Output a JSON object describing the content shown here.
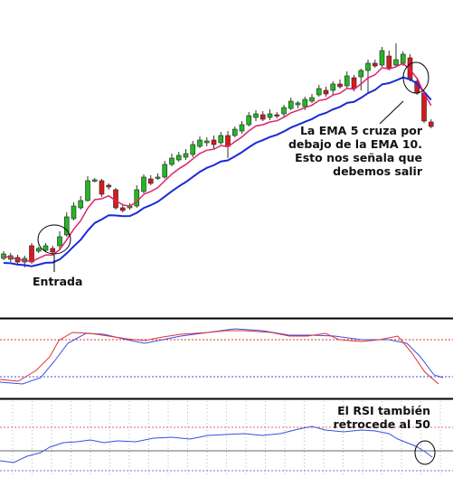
{
  "chart_data": [
    {
      "type": "candlestick",
      "panel": "price",
      "up_color": "#22b822",
      "down_color": "#d81a1a",
      "candles": [
        {
          "o": [
            286,
            281
          ],
          "l": [
            288,
            278
          ]
        },
        {
          "o": [
            287,
            283
          ],
          "l": [
            290,
            280
          ]
        },
        {
          "o": [
            285,
            290
          ],
          "l": [
            293,
            282
          ]
        },
        {
          "o": [
            290,
            286
          ],
          "l": [
            296,
            283
          ]
        },
        {
          "o": [
            272,
            290
          ],
          "l": [
            292,
            269
          ]
        },
        {
          "o": [
            278,
            275
          ],
          "l": [
            280,
            273
          ]
        },
        {
          "o": [
            277,
            272
          ],
          "l": [
            279,
            269
          ]
        },
        {
          "o": [
            275,
            279
          ],
          "l": [
            283,
            272
          ]
        },
        {
          "o": [
            272,
            262
          ],
          "l": [
            276,
            256
          ]
        },
        {
          "o": [
            260,
            240
          ],
          "l": [
            262,
            235
          ]
        },
        {
          "o": [
            242,
            228
          ],
          "l": [
            244,
            224
          ]
        },
        {
          "o": [
            230,
            222
          ],
          "l": [
            232,
            217
          ]
        },
        {
          "o": [
            222,
            200
          ],
          "l": [
            223,
            195
          ]
        },
        {
          "o": [
            200,
            199
          ],
          "l": [
            202,
            197
          ]
        },
        {
          "o": [
            200,
            215
          ],
          "l": [
            218,
            198
          ]
        },
        {
          "o": [
            205,
            207
          ],
          "l": [
            210,
            203
          ]
        },
        {
          "o": [
            210,
            230
          ],
          "l": [
            232,
            208
          ]
        },
        {
          "o": [
            230,
            233
          ],
          "l": [
            235,
            226
          ]
        },
        {
          "o": [
            230,
            228
          ],
          "l": [
            232,
            225
          ]
        },
        {
          "o": [
            228,
            210
          ],
          "l": [
            230,
            205
          ]
        },
        {
          "o": [
            212,
            196
          ],
          "l": [
            214,
            193
          ]
        },
        {
          "o": [
            198,
            203
          ],
          "l": [
            205,
            194
          ]
        },
        {
          "o": [
            197,
            196
          ],
          "l": [
            199,
            192
          ]
        },
        {
          "o": [
            196,
            182
          ],
          "l": [
            198,
            178
          ]
        },
        {
          "o": [
            182,
            175
          ],
          "l": [
            184,
            170
          ]
        },
        {
          "o": [
            177,
            172
          ],
          "l": [
            179,
            168
          ]
        },
        {
          "o": [
            174,
            170
          ],
          "l": [
            177,
            165
          ]
        },
        {
          "o": [
            171,
            160
          ],
          "l": [
            174,
            156
          ]
        },
        {
          "o": [
            162,
            155
          ],
          "l": [
            164,
            151
          ]
        },
        {
          "o": [
            158,
            156
          ],
          "l": [
            162,
            152
          ]
        },
        {
          "o": [
            155,
            160
          ],
          "l": [
            165,
            150
          ]
        },
        {
          "o": [
            158,
            150
          ],
          "l": [
            160,
            146
          ]
        },
        {
          "o": [
            150,
            162
          ],
          "l": [
            175,
            145
          ]
        },
        {
          "o": [
            150,
            143
          ],
          "l": [
            152,
            140
          ]
        },
        {
          "o": [
            145,
            138
          ],
          "l": [
            148,
            134
          ]
        },
        {
          "o": [
            138,
            128
          ],
          "l": [
            140,
            124
          ]
        },
        {
          "o": [
            130,
            126
          ],
          "l": [
            134,
            122
          ]
        },
        {
          "o": [
            127,
            132
          ],
          "l": [
            134,
            123
          ]
        },
        {
          "o": [
            130,
            126
          ],
          "l": [
            133,
            121
          ]
        },
        {
          "o": [
            127,
            128
          ],
          "l": [
            131,
            124
          ]
        },
        {
          "o": [
            126,
            119
          ],
          "l": [
            129,
            116
          ]
        },
        {
          "o": [
            120,
            112
          ],
          "l": [
            122,
            108
          ]
        },
        {
          "o": [
            116,
            114
          ],
          "l": [
            120,
            112
          ]
        },
        {
          "o": [
            118,
            110
          ],
          "l": [
            122,
            107
          ]
        },
        {
          "o": [
            112,
            108
          ],
          "l": [
            114,
            104
          ]
        },
        {
          "o": [
            105,
            98
          ],
          "l": [
            107,
            94
          ]
        },
        {
          "o": [
            100,
            104
          ],
          "l": [
            107,
            96
          ]
        },
        {
          "o": [
            100,
            93
          ],
          "l": [
            105,
            90
          ]
        },
        {
          "o": [
            93,
            96
          ],
          "l": [
            98,
            88
          ]
        },
        {
          "o": [
            95,
            84
          ],
          "l": [
            97,
            79
          ]
        },
        {
          "o": [
            86,
            98
          ],
          "l": [
            101,
            83
          ]
        },
        {
          "o": [
            85,
            78
          ],
          "l": [
            100,
            76
          ]
        },
        {
          "o": [
            78,
            70
          ],
          "l": [
            103,
            66
          ]
        },
        {
          "o": [
            70,
            73
          ],
          "l": [
            75,
            66
          ]
        },
        {
          "o": [
            72,
            56
          ],
          "l": [
            74,
            52
          ]
        },
        {
          "o": [
            62,
            76
          ],
          "l": [
            78,
            56
          ]
        },
        {
          "o": [
            72,
            66
          ],
          "l": [
            74,
            48
          ]
        },
        {
          "o": [
            70,
            60
          ],
          "l": [
            73,
            57
          ]
        },
        {
          "o": [
            64,
            88
          ],
          "l": [
            90,
            60
          ]
        },
        {
          "o": [
            90,
            103
          ],
          "l": [
            105,
            86
          ]
        },
        {
          "o": [
            103,
            134
          ],
          "l": [
            136,
            100
          ]
        },
        {
          "o": [
            135,
            140
          ],
          "l": [
            142,
            132
          ]
        }
      ],
      "ema_fast": {
        "color": "#e0206a"
      },
      "ema_slow": {
        "color": "#1a2ad8"
      }
    },
    {
      "type": "line",
      "panel": "oscillator",
      "series": [
        {
          "color": "#e03030"
        },
        {
          "color": "#3a4ee0"
        }
      ]
    },
    {
      "type": "line",
      "panel": "rsi",
      "series": [
        {
          "color": "#3a4ee0"
        }
      ]
    }
  ],
  "annotations": {
    "entrada": "Entrada",
    "ema_cross": [
      "La EMA 5 cruza por",
      "debajo de la EMA 10.",
      "Esto nos señala que",
      "debemos salir"
    ],
    "rsi_note": [
      "El RSI también",
      "retrocede al 50"
    ]
  },
  "icons": [
    "circle-highlight-entry",
    "circle-highlight-cross",
    "circle-highlight-rsi"
  ]
}
